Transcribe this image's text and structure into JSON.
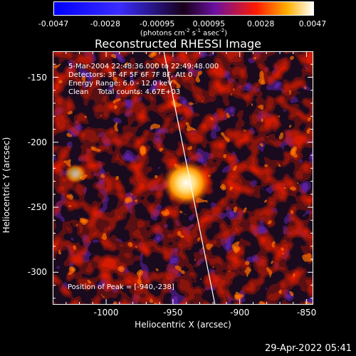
{
  "chart_data": {
    "type": "heatmap",
    "title": "Reconstructed RHESSI Image",
    "xlabel": "Heliocentric X (arcsec)",
    "ylabel": "Heliocentric Y (arcsec)",
    "xlim": [
      -1040,
      -845
    ],
    "ylim": [
      -325,
      -130
    ],
    "x_ticks": [
      "-1000",
      "-950",
      "-900",
      "-850"
    ],
    "x_tick_values": [
      -1000,
      -950,
      -900,
      -850
    ],
    "y_ticks": [
      "-150",
      "-200",
      "-250",
      "-300"
    ],
    "y_tick_values": [
      -150,
      -200,
      -250,
      -300
    ],
    "colorbar": {
      "ticks": [
        "-0.0047",
        "-0.0028",
        "-0.00095",
        "0.00095",
        "0.0028",
        "0.0047"
      ],
      "min": -0.0047,
      "max": 0.0047,
      "unit_prefix": "(photons cm",
      "unit_exp1": "-2",
      "unit_mid": " s",
      "unit_exp2": "-1",
      "unit_mid2": " asec",
      "unit_exp3": "-2",
      "unit_suffix": ")"
    },
    "annotations": {
      "time": "5-Mar-2004 22:48:36.000 to 22:49:48.000",
      "detectors": "Detectors: 3F 4F 5F 6F 7F 8F, Att 0",
      "energy": "Energy Range: 6.0 - 12.0 keV",
      "clean": "Clean    Total counts: 4.67E+03"
    },
    "peak_label": "Position of Peak = [-940,-238]",
    "peak": [
      -940,
      -238
    ]
  },
  "colors": {
    "neg_high": "#0000ff",
    "mid": "#000000",
    "low_pos": "#5a1fa0",
    "mid_pos": "#ff2000",
    "high_pos": "#ffffff",
    "limb_line": "#ffffff"
  },
  "footer": {
    "date": "29-Apr-2022 05:41"
  }
}
